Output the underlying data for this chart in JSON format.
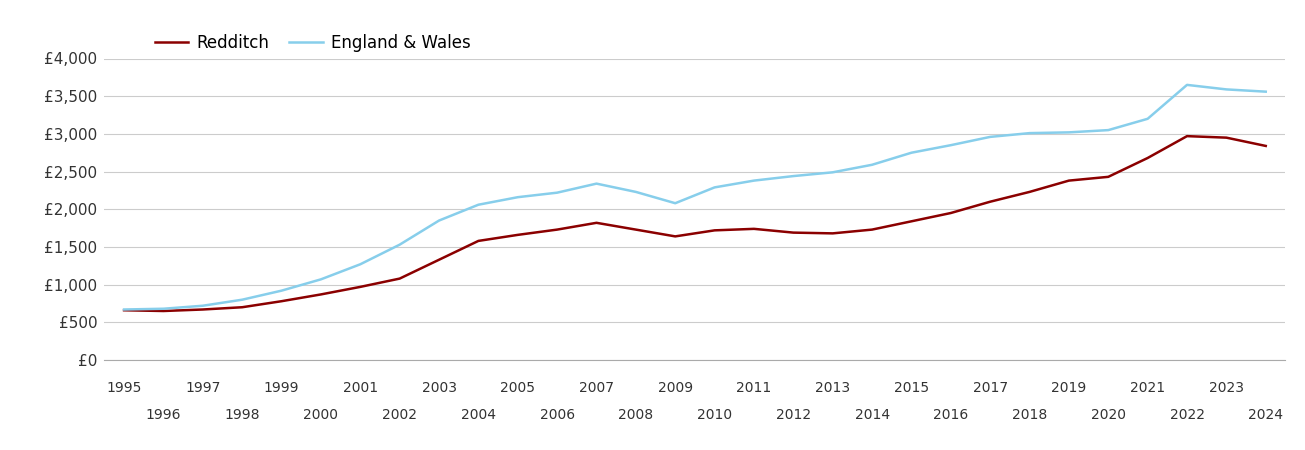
{
  "years": [
    1995,
    1996,
    1997,
    1998,
    1999,
    2000,
    2001,
    2002,
    2003,
    2004,
    2005,
    2006,
    2007,
    2008,
    2009,
    2010,
    2011,
    2012,
    2013,
    2014,
    2015,
    2016,
    2017,
    2018,
    2019,
    2020,
    2021,
    2022,
    2023,
    2024
  ],
  "redditch": [
    660,
    650,
    670,
    700,
    780,
    870,
    970,
    1080,
    1330,
    1580,
    1660,
    1730,
    1820,
    1730,
    1640,
    1720,
    1740,
    1690,
    1680,
    1730,
    1840,
    1950,
    2100,
    2230,
    2380,
    2430,
    2680,
    2970,
    2950,
    2840
  ],
  "england_wales": [
    670,
    680,
    720,
    800,
    920,
    1070,
    1270,
    1530,
    1850,
    2060,
    2160,
    2220,
    2340,
    2230,
    2080,
    2290,
    2380,
    2440,
    2490,
    2590,
    2750,
    2850,
    2960,
    3010,
    3020,
    3050,
    3200,
    3650,
    3590,
    3560
  ],
  "redditch_color": "#8b0000",
  "england_wales_color": "#87ceeb",
  "background_color": "#ffffff",
  "grid_color": "#cccccc",
  "ylim": [
    0,
    4000
  ],
  "yticks": [
    0,
    500,
    1000,
    1500,
    2000,
    2500,
    3000,
    3500,
    4000
  ],
  "ytick_labels": [
    "£0",
    "£500",
    "£1,000",
    "£1,500",
    "£2,000",
    "£2,500",
    "£3,000",
    "£3,500",
    "£4,000"
  ],
  "legend_redditch": "Redditch",
  "legend_england_wales": "England & Wales",
  "line_width": 1.8
}
